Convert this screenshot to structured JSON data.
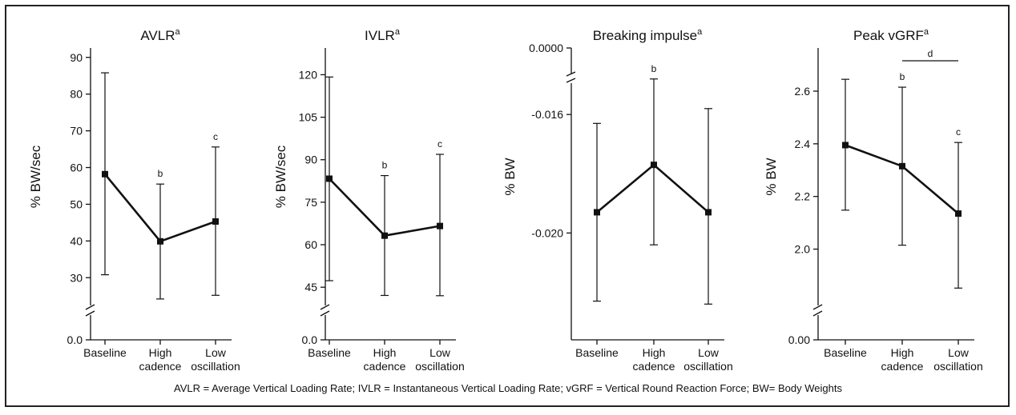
{
  "caption": "AVLR = Average Vertical Loading Rate; IVLR = Instantaneous Vertical Loading Rate; vGRF = Vertical Round Reaction Force; BW= Body Weights",
  "chart_data": [
    {
      "type": "line",
      "title": "AVLR",
      "title_sup": "a",
      "ylabel": "% BW/sec",
      "categories": [
        [
          "Baseline"
        ],
        [
          "High",
          "cadence"
        ],
        [
          "Low",
          "oscillation"
        ]
      ],
      "yticks": [
        "90",
        "80",
        "70",
        "60",
        "50",
        "40",
        "30"
      ],
      "zero_label": "0.0",
      "ylim": [
        22,
        93
      ],
      "mean": [
        58.2,
        39.9,
        45.3
      ],
      "upper": [
        85.8,
        55.5,
        65.6
      ],
      "lower": [
        30.8,
        24.2,
        25.2
      ],
      "point_marks": [
        "",
        "b",
        "c"
      ],
      "bracket": null
    },
    {
      "type": "line",
      "title": "IVLR",
      "title_sup": "a",
      "ylabel": "% BW/sec",
      "categories": [
        [
          "Baseline"
        ],
        [
          "High",
          "cadence"
        ],
        [
          "Low",
          "oscillation"
        ]
      ],
      "yticks": [
        "120",
        "105",
        "90",
        "75",
        "60",
        "45"
      ],
      "zero_label": "0.0",
      "ylim": [
        38,
        130
      ],
      "mean": [
        83.3,
        63.2,
        66.6
      ],
      "upper": [
        119.2,
        84.4,
        91.9
      ],
      "lower": [
        47.3,
        42.1,
        42.0
      ],
      "point_marks": [
        "",
        "b",
        "c"
      ],
      "bracket": null
    },
    {
      "type": "line",
      "title": "Breaking impulse",
      "title_sup": "a",
      "ylabel": "% BW",
      "categories": [
        [
          "Baseline"
        ],
        [
          "High",
          "cadence"
        ],
        [
          "Low",
          "oscillation"
        ]
      ],
      "yticks": [
        "-0.016",
        "-0.020"
      ],
      "zero_label": "0.0000",
      "ylim": [
        -0.0225,
        -0.0137
      ],
      "mean": [
        -0.0193,
        -0.0177,
        -0.0193
      ],
      "upper": [
        -0.0163,
        -0.0148,
        -0.0158
      ],
      "lower": [
        -0.0223,
        -0.0204,
        -0.0224
      ],
      "point_marks": [
        "",
        "b",
        ""
      ],
      "bracket": null
    },
    {
      "type": "line",
      "title": "Peak vGRF",
      "title_sup": "a",
      "ylabel": "% BW",
      "categories": [
        [
          "Baseline"
        ],
        [
          "High",
          "cadence"
        ],
        [
          "Low",
          "oscillation"
        ]
      ],
      "yticks": [
        "2.6",
        "2.4",
        "2.2",
        "2.0"
      ],
      "zero_label": "0.00",
      "ylim": [
        1.78,
        2.77
      ],
      "mean": [
        2.395,
        2.315,
        2.135
      ],
      "upper": [
        2.645,
        2.615,
        2.405
      ],
      "lower": [
        2.148,
        2.015,
        1.852
      ],
      "point_marks": [
        "",
        "b",
        "c"
      ],
      "bracket": {
        "from": 1,
        "to": 2,
        "label": "d"
      }
    }
  ]
}
